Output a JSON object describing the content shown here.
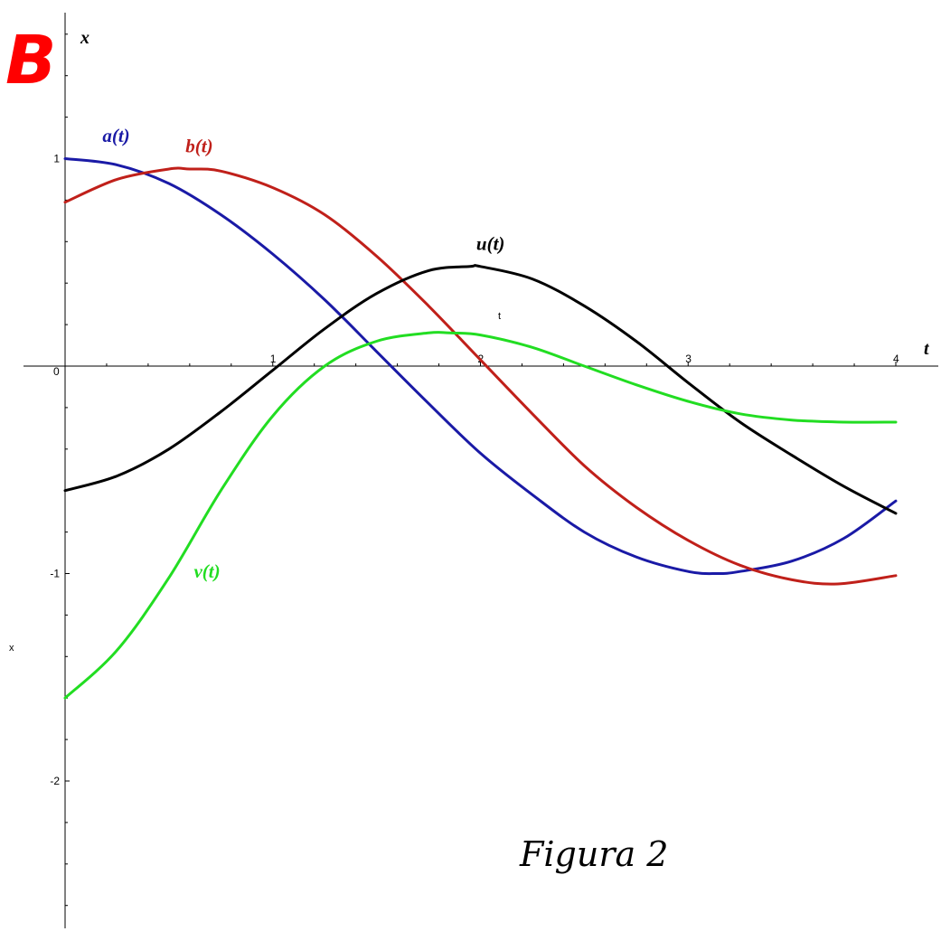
{
  "chart_data": {
    "type": "line",
    "panel_letter": "B",
    "caption": "Figura 2",
    "xlabel": "t",
    "ylabel": "x",
    "inner_xlabel": "t",
    "inner_ylabel": "x",
    "xlim": [
      0,
      4.2
    ],
    "ylim": [
      -2.7,
      1.7
    ],
    "x_ticks": [
      {
        "value": 0,
        "label": "0"
      },
      {
        "value": 1,
        "label": "1"
      },
      {
        "value": 2,
        "label": "2"
      },
      {
        "value": 3,
        "label": "3"
      },
      {
        "value": 4,
        "label": "4"
      }
    ],
    "y_ticks": [
      {
        "value": 1,
        "label": "1"
      },
      {
        "value": -1,
        "label": "-1"
      },
      {
        "value": -2,
        "label": "-2"
      }
    ],
    "grid": false,
    "series": [
      {
        "name": "a(t)",
        "color": "#1a1aa6",
        "x": [
          0,
          0.25,
          0.5,
          0.75,
          1.0,
          1.25,
          1.5,
          1.75,
          2.0,
          2.25,
          2.5,
          2.75,
          3.0,
          3.14,
          3.25,
          3.5,
          3.75,
          4.0
        ],
        "y": [
          1.0,
          0.97,
          0.88,
          0.73,
          0.54,
          0.32,
          0.07,
          -0.18,
          -0.42,
          -0.62,
          -0.8,
          -0.92,
          -0.99,
          -1.0,
          -0.99,
          -0.94,
          -0.83,
          -0.65
        ]
      },
      {
        "name": "b(t)",
        "color": "#c0201a",
        "x": [
          0,
          0.25,
          0.5,
          0.6,
          0.75,
          1.0,
          1.25,
          1.5,
          1.75,
          2.0,
          2.25,
          2.5,
          2.75,
          3.0,
          3.25,
          3.5,
          3.72,
          4.0
        ],
        "y": [
          0.79,
          0.9,
          0.95,
          0.95,
          0.94,
          0.86,
          0.73,
          0.53,
          0.29,
          0.03,
          -0.23,
          -0.48,
          -0.68,
          -0.84,
          -0.96,
          -1.03,
          -1.05,
          -1.01
        ]
      },
      {
        "name": "u(t)",
        "color": "#000000",
        "x": [
          0,
          0.25,
          0.5,
          0.75,
          1.0,
          1.25,
          1.5,
          1.75,
          1.95,
          2.0,
          2.25,
          2.5,
          2.75,
          3.0,
          3.25,
          3.5,
          3.75,
          4.0
        ],
        "y": [
          -0.6,
          -0.53,
          -0.4,
          -0.22,
          -0.02,
          0.18,
          0.35,
          0.46,
          0.48,
          0.48,
          0.42,
          0.29,
          0.12,
          -0.08,
          -0.27,
          -0.43,
          -0.58,
          -0.71
        ]
      },
      {
        "name": "v(t)",
        "color": "#22dd22",
        "x": [
          0,
          0.25,
          0.5,
          0.75,
          1.0,
          1.25,
          1.5,
          1.75,
          1.85,
          2.0,
          2.25,
          2.5,
          2.75,
          3.0,
          3.25,
          3.5,
          3.75,
          4.0
        ],
        "y": [
          -1.6,
          -1.37,
          -1.02,
          -0.6,
          -0.24,
          0.0,
          0.12,
          0.16,
          0.16,
          0.15,
          0.09,
          0.0,
          -0.09,
          -0.17,
          -0.23,
          -0.26,
          -0.27,
          -0.27
        ]
      }
    ],
    "annotations": [
      {
        "text": "a(t)",
        "series": 0,
        "at": [
          0.18,
          1.08
        ]
      },
      {
        "text": "b(t)",
        "series": 1,
        "at": [
          0.58,
          1.03
        ]
      },
      {
        "text": "u(t)",
        "series": 2,
        "at": [
          1.98,
          0.56
        ]
      },
      {
        "text": "v(t)",
        "series": 3,
        "at": [
          0.62,
          -1.02
        ]
      }
    ]
  }
}
